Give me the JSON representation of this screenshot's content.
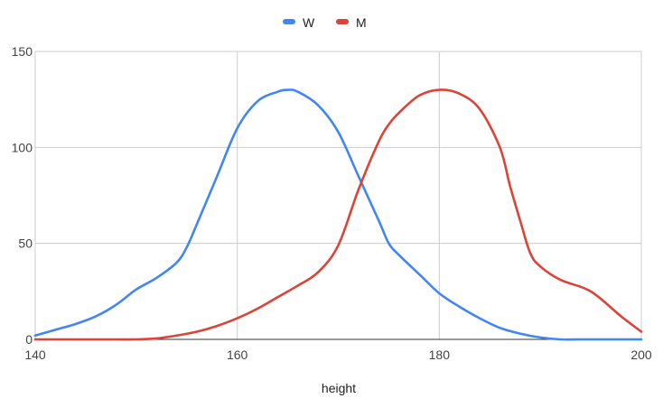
{
  "chart_data": {
    "type": "line",
    "title": "",
    "xlabel": "height",
    "ylabel": "",
    "xlim": [
      140,
      200
    ],
    "ylim": [
      0,
      150
    ],
    "xticks": [
      140,
      160,
      180,
      200
    ],
    "yticks": [
      0,
      50,
      100,
      150
    ],
    "grid": true,
    "legend": "top-center",
    "series": [
      {
        "name": "W",
        "color": "#4285f4",
        "x": [
          140,
          142,
          144,
          146,
          148,
          150,
          152,
          154,
          155,
          156,
          158,
          160,
          162,
          164,
          165,
          166,
          168,
          170,
          172,
          174,
          175,
          176,
          178,
          180,
          182,
          184,
          186,
          188,
          190,
          192,
          194,
          196,
          198,
          200
        ],
        "y": [
          2,
          5,
          8,
          12,
          18,
          26,
          32,
          40,
          48,
          60,
          85,
          110,
          124,
          129,
          130,
          129,
          122,
          108,
          85,
          62,
          50,
          44,
          34,
          24,
          17,
          11,
          6,
          3,
          1,
          0,
          0,
          0,
          0,
          0
        ]
      },
      {
        "name": "M",
        "color": "#db4437",
        "x": [
          140,
          145,
          148,
          150,
          152,
          154,
          156,
          158,
          160,
          162,
          164,
          166,
          168,
          170,
          172,
          174,
          175,
          176,
          178,
          180,
          182,
          184,
          186,
          187,
          188,
          189,
          190,
          192,
          195,
          198,
          200
        ],
        "y": [
          0,
          0,
          0,
          0,
          0.5,
          2,
          4,
          7,
          11,
          16,
          22,
          28,
          35,
          49,
          78,
          103,
          112,
          118,
          127,
          130,
          128,
          120,
          100,
          80,
          62,
          45,
          38,
          31,
          25,
          12,
          4
        ]
      }
    ]
  }
}
